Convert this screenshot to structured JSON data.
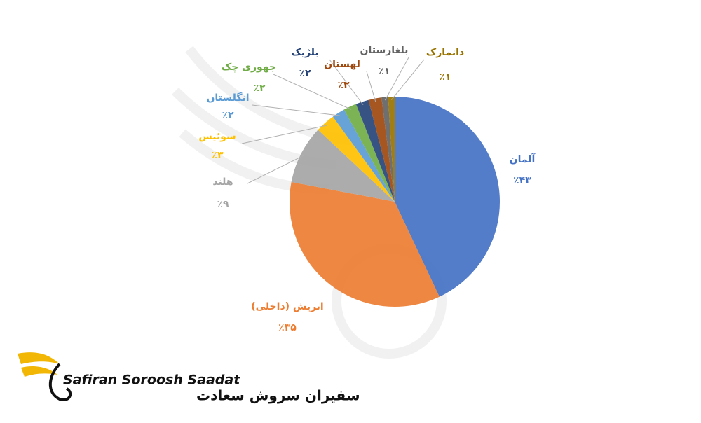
{
  "chart_data": {
    "type": "pie",
    "categories": [
      "آلمان",
      "اتریش (داخلی)",
      "هلند",
      "سوئیس",
      "انگلستان",
      "جهوری چک",
      "بلژیک",
      "لهستان",
      "بلغارستان",
      "دانمارک"
    ],
    "values": [
      43,
      35,
      9,
      3,
      2,
      2,
      2,
      2,
      1,
      1
    ],
    "value_labels": [
      "٪۴۳",
      "٪۳۵",
      "٪۹",
      "٪۳",
      "٪۲",
      "٪۲",
      "٪۲",
      "٪۲",
      "٪۱",
      "٪۱"
    ],
    "colors": [
      "#4472c4",
      "#ed7d31",
      "#a5a5a5",
      "#ffc000",
      "#5b9bd5",
      "#70ad47",
      "#264478",
      "#9e480e",
      "#636363",
      "#997300"
    ]
  },
  "logo": {
    "latin": "Safiran Soroosh Saadat",
    "persian": "سفیران سروش سعادت"
  }
}
